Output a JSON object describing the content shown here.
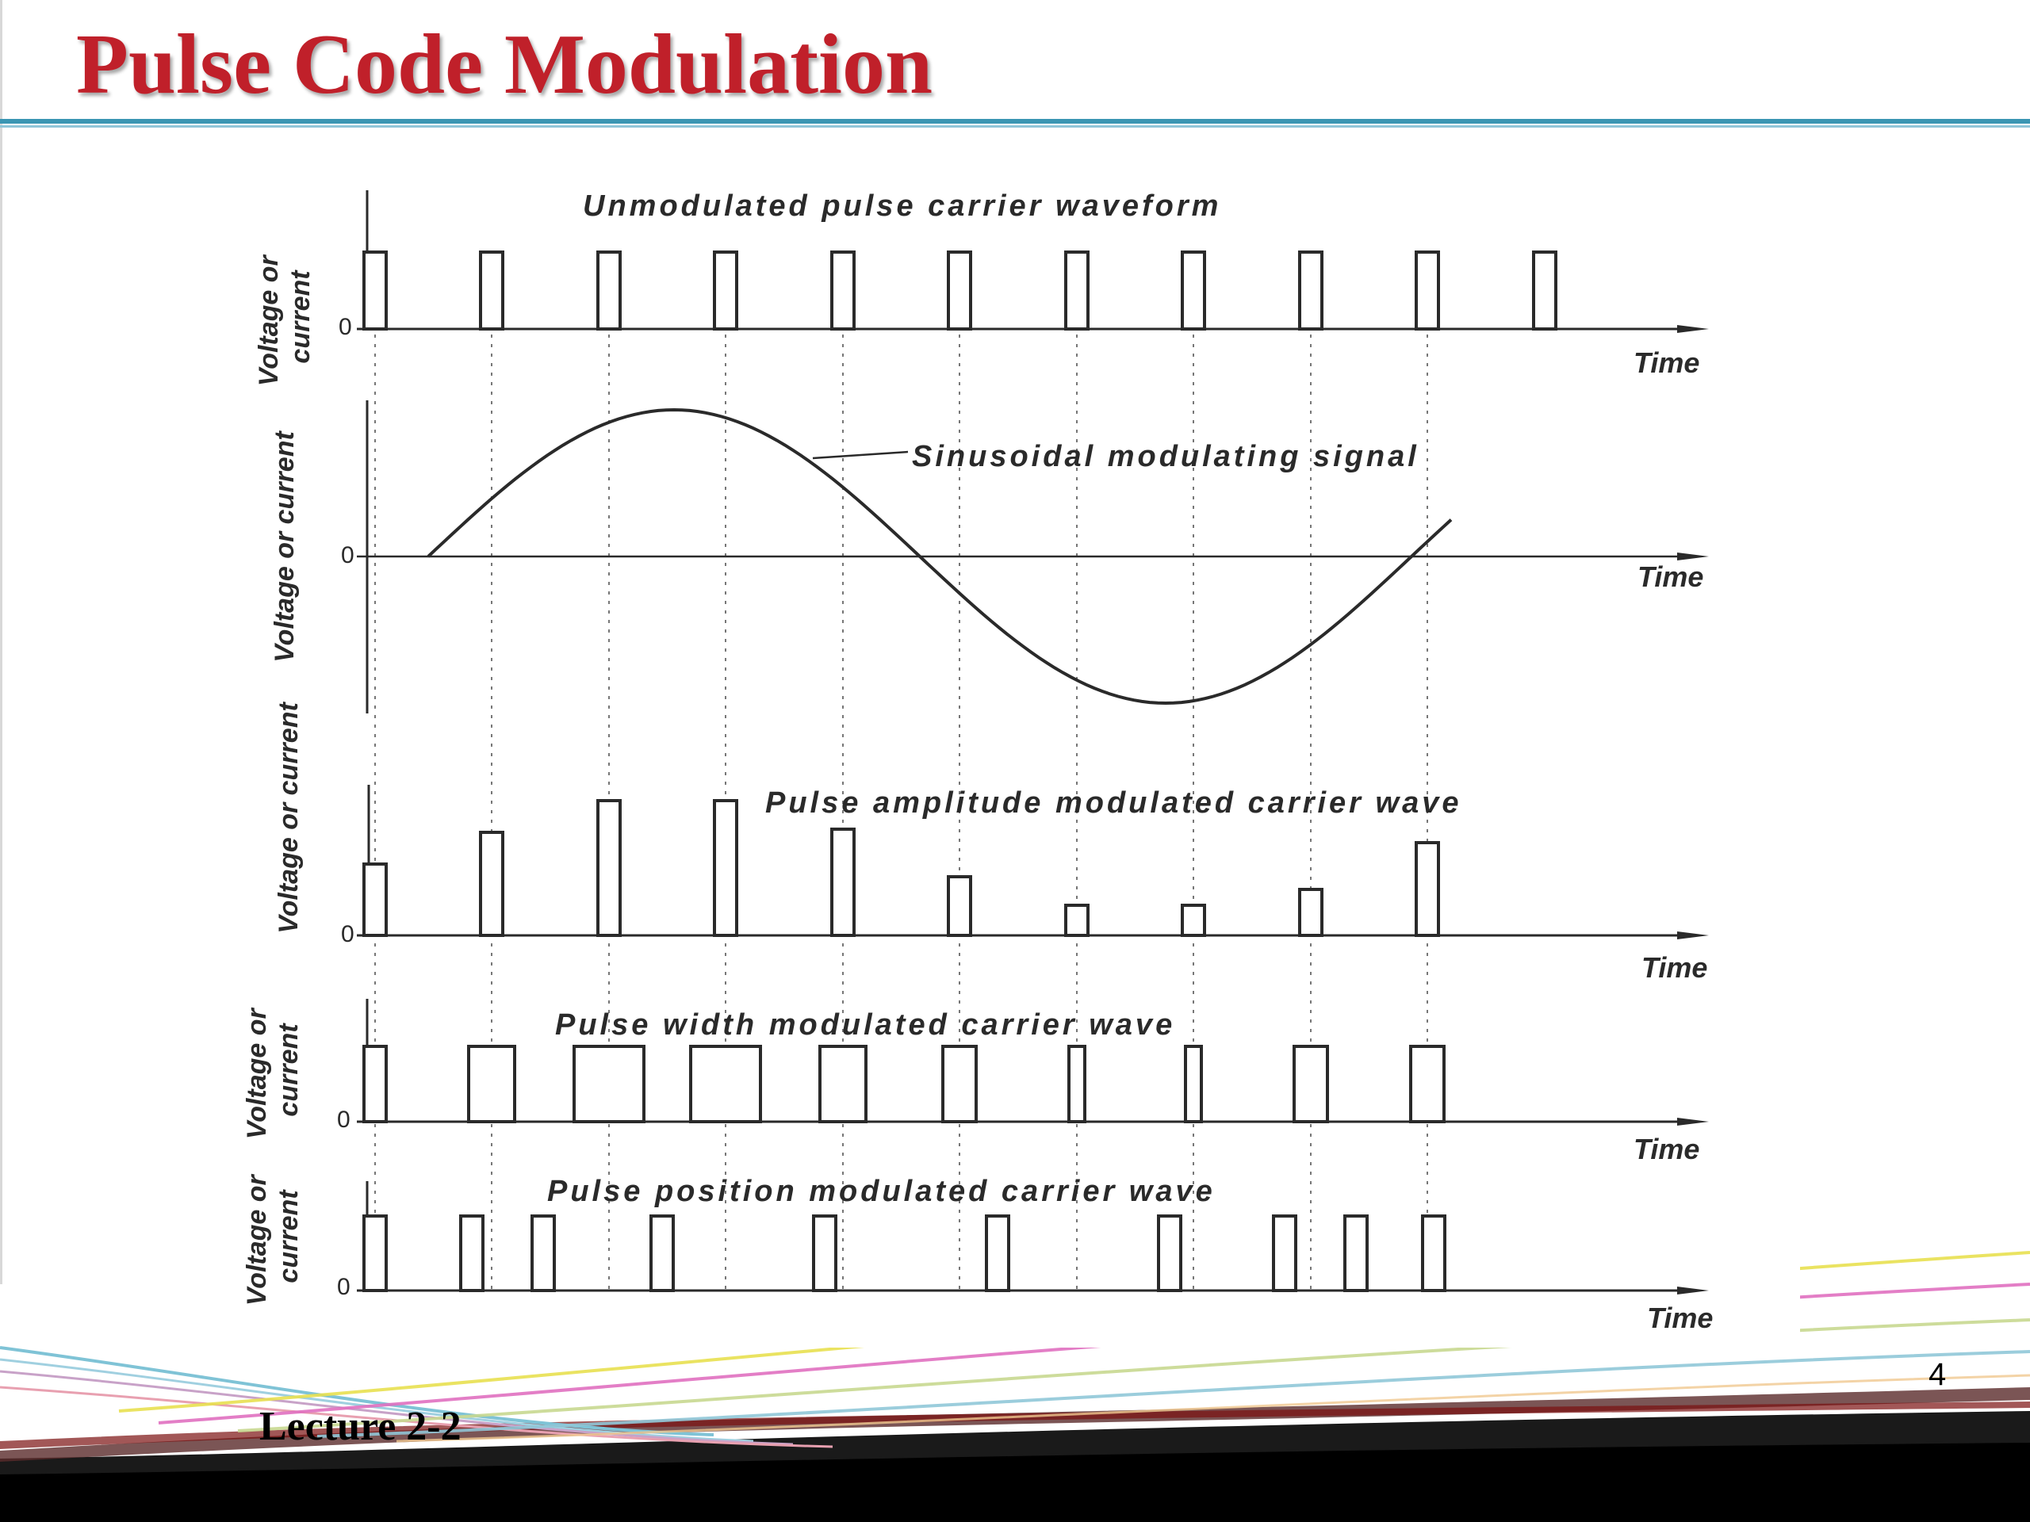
{
  "slide": {
    "title": "Pulse Code Modulation",
    "footer_label": "Lecture 2-2",
    "page_number": "4"
  },
  "diagram": {
    "axis_zero": "0",
    "time_label": "Time",
    "panels": [
      {
        "caption": "Unmodulated pulse carrier waveform",
        "ylabel": [
          "Voltage or",
          "current"
        ]
      },
      {
        "caption": "Sinusoidal modulating signal",
        "ylabel": [
          "Voltage or current"
        ]
      },
      {
        "caption": "Pulse amplitude modulated carrier wave",
        "ylabel": [
          "Voltage or current"
        ]
      },
      {
        "caption": "Pulse width modulated carrier wave",
        "ylabel": [
          "Voltage or",
          "current"
        ]
      },
      {
        "caption": "Pulse position modulated carrier wave",
        "ylabel": [
          "Voltage or",
          "current"
        ]
      }
    ]
  },
  "colors": {
    "title": "#c0202a",
    "rule": "#3a96b3",
    "ink": "#2a2a2a"
  }
}
